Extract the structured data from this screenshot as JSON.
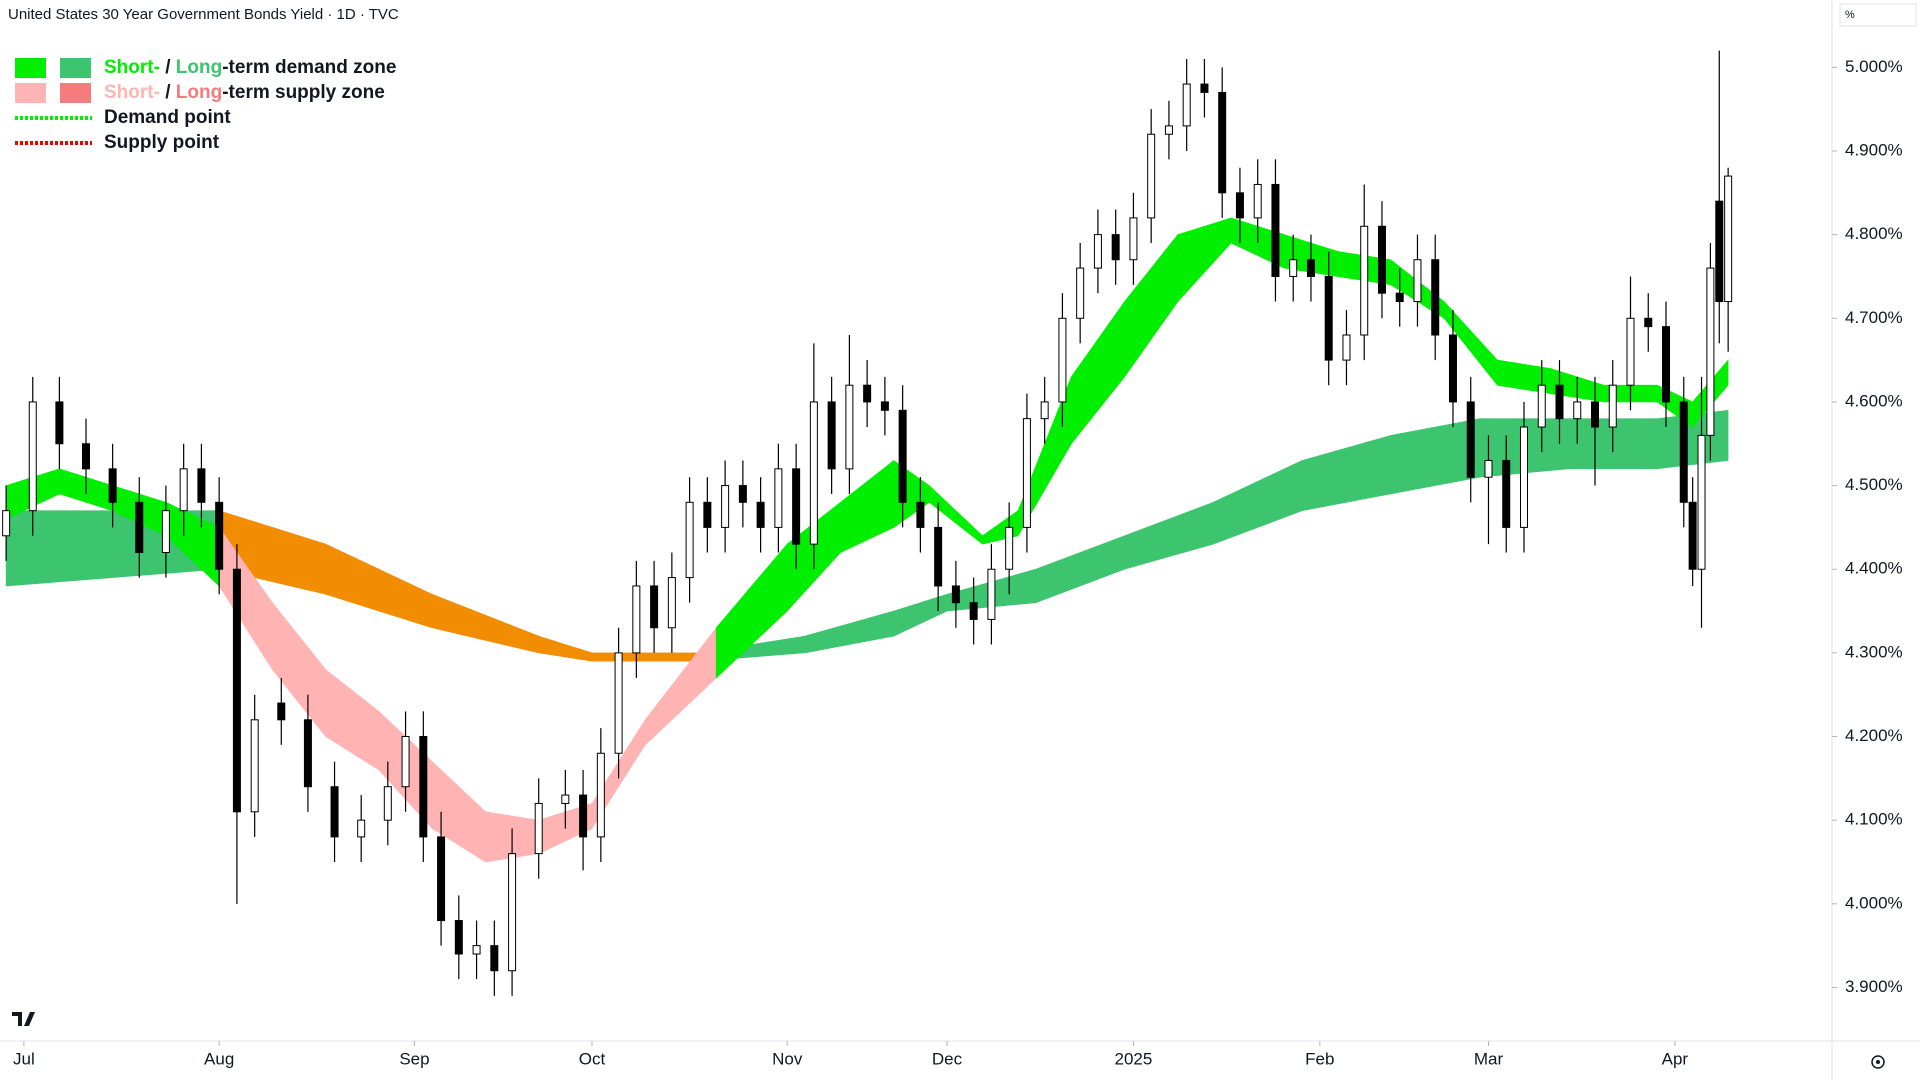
{
  "chart_data": {
    "type": "candlestick",
    "title": "United States 30 Year Government Bonds Yield · 1D · TVC",
    "y_unit": "%",
    "xlim": [
      -0.69,
      205.7
    ],
    "ylim": [
      3.836,
      5.0805
    ],
    "xticks": [
      {
        "value": 2,
        "label": "Jul"
      },
      {
        "value": 24,
        "label": "Aug"
      },
      {
        "value": 46,
        "label": "Sep"
      },
      {
        "value": 66,
        "label": "Oct"
      },
      {
        "value": 88,
        "label": "Nov"
      },
      {
        "value": 106,
        "label": "Dec"
      },
      {
        "value": 127,
        "label": "2025"
      },
      {
        "value": 148,
        "label": "Feb"
      },
      {
        "value": 167,
        "label": "Mar"
      },
      {
        "value": 188,
        "label": "Apr"
      }
    ],
    "yticks": [
      {
        "value": 5.0,
        "label": "5.000%"
      },
      {
        "value": 4.9,
        "label": "4.900%"
      },
      {
        "value": 4.8,
        "label": "4.800%"
      },
      {
        "value": 4.7,
        "label": "4.700%"
      },
      {
        "value": 4.6,
        "label": "4.600%"
      },
      {
        "value": 4.5,
        "label": "4.500%"
      },
      {
        "value": 4.4,
        "label": "4.400%"
      },
      {
        "value": 4.3,
        "label": "4.300%"
      },
      {
        "value": 4.2,
        "label": "4.200%"
      },
      {
        "value": 4.1,
        "label": "4.100%"
      },
      {
        "value": 4.0,
        "label": "4.000%"
      },
      {
        "value": 3.9,
        "label": "3.900%"
      }
    ],
    "up_color": "#ffffff",
    "down_color": "#000000",
    "candles": [
      [
        0,
        4.44,
        4.5,
        4.41,
        4.47
      ],
      [
        3,
        4.47,
        4.63,
        4.44,
        4.6
      ],
      [
        6,
        4.6,
        4.63,
        4.52,
        4.55
      ],
      [
        9,
        4.55,
        4.58,
        4.49,
        4.52
      ],
      [
        12,
        4.52,
        4.55,
        4.45,
        4.48
      ],
      [
        15,
        4.48,
        4.51,
        4.39,
        4.42
      ],
      [
        18,
        4.42,
        4.5,
        4.39,
        4.47
      ],
      [
        20,
        4.47,
        4.55,
        4.44,
        4.52
      ],
      [
        22,
        4.52,
        4.55,
        4.45,
        4.48
      ],
      [
        24,
        4.48,
        4.51,
        4.37,
        4.4
      ],
      [
        26,
        4.4,
        4.43,
        4.0,
        4.11
      ],
      [
        28,
        4.11,
        4.25,
        4.08,
        4.22
      ],
      [
        31,
        4.24,
        4.27,
        4.19,
        4.22
      ],
      [
        34,
        4.22,
        4.25,
        4.11,
        4.14
      ],
      [
        37,
        4.14,
        4.17,
        4.05,
        4.08
      ],
      [
        40,
        4.08,
        4.13,
        4.05,
        4.1
      ],
      [
        43,
        4.1,
        4.17,
        4.07,
        4.14
      ],
      [
        45,
        4.14,
        4.23,
        4.11,
        4.2
      ],
      [
        47,
        4.2,
        4.23,
        4.05,
        4.08
      ],
      [
        49,
        4.08,
        4.11,
        3.95,
        3.98
      ],
      [
        51,
        3.98,
        4.01,
        3.91,
        3.94
      ],
      [
        53,
        3.94,
        3.98,
        3.91,
        3.95
      ],
      [
        55,
        3.95,
        3.98,
        3.89,
        3.92
      ],
      [
        57,
        3.92,
        4.09,
        3.89,
        4.06
      ],
      [
        60,
        4.06,
        4.15,
        4.03,
        4.12
      ],
      [
        63,
        4.12,
        4.16,
        4.09,
        4.13
      ],
      [
        65,
        4.13,
        4.16,
        4.04,
        4.08
      ],
      [
        67,
        4.08,
        4.21,
        4.05,
        4.18
      ],
      [
        69,
        4.18,
        4.33,
        4.15,
        4.3
      ],
      [
        71,
        4.3,
        4.41,
        4.27,
        4.38
      ],
      [
        73,
        4.38,
        4.41,
        4.3,
        4.33
      ],
      [
        75,
        4.33,
        4.42,
        4.3,
        4.39
      ],
      [
        77,
        4.39,
        4.51,
        4.36,
        4.48
      ],
      [
        79,
        4.48,
        4.51,
        4.42,
        4.45
      ],
      [
        81,
        4.45,
        4.53,
        4.42,
        4.5
      ],
      [
        83,
        4.5,
        4.53,
        4.45,
        4.48
      ],
      [
        85,
        4.48,
        4.51,
        4.42,
        4.45
      ],
      [
        87,
        4.45,
        4.55,
        4.42,
        4.52
      ],
      [
        89,
        4.52,
        4.55,
        4.4,
        4.43
      ],
      [
        91,
        4.43,
        4.67,
        4.4,
        4.6
      ],
      [
        93,
        4.6,
        4.63,
        4.49,
        4.52
      ],
      [
        95,
        4.52,
        4.68,
        4.49,
        4.62
      ],
      [
        97,
        4.62,
        4.65,
        4.57,
        4.6
      ],
      [
        99,
        4.6,
        4.63,
        4.56,
        4.59
      ],
      [
        101,
        4.59,
        4.62,
        4.45,
        4.48
      ],
      [
        103,
        4.48,
        4.51,
        4.42,
        4.45
      ],
      [
        105,
        4.45,
        4.48,
        4.35,
        4.38
      ],
      [
        107,
        4.38,
        4.41,
        4.33,
        4.36
      ],
      [
        109,
        4.36,
        4.39,
        4.31,
        4.34
      ],
      [
        111,
        4.34,
        4.43,
        4.31,
        4.4
      ],
      [
        113,
        4.4,
        4.48,
        4.37,
        4.45
      ],
      [
        115,
        4.45,
        4.61,
        4.42,
        4.58
      ],
      [
        117,
        4.58,
        4.63,
        4.55,
        4.6
      ],
      [
        119,
        4.6,
        4.73,
        4.57,
        4.7
      ],
      [
        121,
        4.7,
        4.79,
        4.67,
        4.76
      ],
      [
        123,
        4.76,
        4.83,
        4.73,
        4.8
      ],
      [
        125,
        4.8,
        4.83,
        4.74,
        4.77
      ],
      [
        127,
        4.77,
        4.85,
        4.74,
        4.82
      ],
      [
        129,
        4.82,
        4.95,
        4.79,
        4.92
      ],
      [
        131,
        4.92,
        4.96,
        4.89,
        4.93
      ],
      [
        133,
        4.93,
        5.01,
        4.9,
        4.98
      ],
      [
        135,
        4.98,
        5.01,
        4.94,
        4.97
      ],
      [
        137,
        4.97,
        5.0,
        4.82,
        4.85
      ],
      [
        139,
        4.85,
        4.88,
        4.79,
        4.82
      ],
      [
        141,
        4.82,
        4.89,
        4.79,
        4.86
      ],
      [
        143,
        4.86,
        4.89,
        4.72,
        4.75
      ],
      [
        145,
        4.75,
        4.8,
        4.72,
        4.77
      ],
      [
        147,
        4.77,
        4.8,
        4.72,
        4.75
      ],
      [
        149,
        4.75,
        4.78,
        4.62,
        4.65
      ],
      [
        151,
        4.65,
        4.71,
        4.62,
        4.68
      ],
      [
        153,
        4.68,
        4.86,
        4.65,
        4.81
      ],
      [
        155,
        4.81,
        4.84,
        4.7,
        4.73
      ],
      [
        157,
        4.73,
        4.76,
        4.69,
        4.72
      ],
      [
        159,
        4.72,
        4.8,
        4.69,
        4.77
      ],
      [
        161,
        4.77,
        4.8,
        4.65,
        4.68
      ],
      [
        163,
        4.68,
        4.71,
        4.57,
        4.6
      ],
      [
        165,
        4.6,
        4.63,
        4.48,
        4.51
      ],
      [
        167,
        4.51,
        4.56,
        4.43,
        4.53
      ],
      [
        169,
        4.53,
        4.56,
        4.42,
        4.45
      ],
      [
        171,
        4.45,
        4.6,
        4.42,
        4.57
      ],
      [
        173,
        4.57,
        4.65,
        4.54,
        4.62
      ],
      [
        175,
        4.62,
        4.65,
        4.55,
        4.58
      ],
      [
        177,
        4.58,
        4.63,
        4.55,
        4.6
      ],
      [
        179,
        4.6,
        4.63,
        4.5,
        4.57
      ],
      [
        181,
        4.57,
        4.65,
        4.54,
        4.62
      ],
      [
        183,
        4.62,
        4.75,
        4.59,
        4.7
      ],
      [
        185,
        4.7,
        4.73,
        4.66,
        4.69
      ],
      [
        187,
        4.69,
        4.72,
        4.57,
        4.6
      ],
      [
        189,
        4.6,
        4.63,
        4.45,
        4.48
      ],
      [
        190,
        4.48,
        4.51,
        4.38,
        4.4
      ],
      [
        191,
        4.4,
        4.63,
        4.33,
        4.56
      ],
      [
        192,
        4.56,
        4.79,
        4.53,
        4.76
      ],
      [
        193,
        4.84,
        5.02,
        4.67,
        4.72
      ],
      [
        194,
        4.72,
        4.88,
        4.66,
        4.87
      ]
    ],
    "short_band": {
      "x": [
        0,
        6,
        12,
        18,
        24,
        30,
        36,
        42,
        48,
        54,
        60,
        66,
        72,
        80,
        88,
        94,
        100,
        104,
        110,
        114,
        120,
        126,
        132,
        138,
        144,
        150,
        156,
        162,
        168,
        174,
        180,
        186,
        190,
        194
      ],
      "upper": [
        4.5,
        4.52,
        4.5,
        4.48,
        4.45,
        4.36,
        4.28,
        4.23,
        4.17,
        4.11,
        4.1,
        4.12,
        4.22,
        4.33,
        4.43,
        4.48,
        4.53,
        4.5,
        4.44,
        4.47,
        4.63,
        4.72,
        4.8,
        4.82,
        4.8,
        4.78,
        4.77,
        4.72,
        4.65,
        4.64,
        4.62,
        4.62,
        4.6,
        4.65
      ],
      "lower": [
        4.46,
        4.49,
        4.47,
        4.44,
        4.38,
        4.28,
        4.2,
        4.16,
        4.09,
        4.05,
        4.06,
        4.09,
        4.19,
        4.27,
        4.35,
        4.42,
        4.45,
        4.48,
        4.43,
        4.44,
        4.55,
        4.63,
        4.72,
        4.79,
        4.76,
        4.75,
        4.74,
        4.7,
        4.62,
        4.61,
        4.6,
        4.6,
        4.57,
        4.62
      ]
    },
    "long_band": {
      "x": [
        0,
        12,
        24,
        36,
        48,
        60,
        66,
        78,
        90,
        100,
        106,
        116,
        126,
        136,
        146,
        156,
        166,
        176,
        186,
        194
      ],
      "upper": [
        4.47,
        4.47,
        4.47,
        4.43,
        4.37,
        4.32,
        4.3,
        4.3,
        4.32,
        4.35,
        4.37,
        4.4,
        4.44,
        4.48,
        4.53,
        4.56,
        4.58,
        4.58,
        4.58,
        4.59
      ],
      "lower": [
        4.38,
        4.39,
        4.4,
        4.37,
        4.33,
        4.3,
        4.29,
        4.29,
        4.3,
        4.32,
        4.35,
        4.36,
        4.4,
        4.43,
        4.47,
        4.49,
        4.51,
        4.52,
        4.52,
        4.53
      ]
    },
    "band_colors": {
      "short_demand": "#00ee00",
      "long_demand": "#3cc46e",
      "short_supply": "#ffb3b3",
      "long_supply": "#f28c00"
    },
    "legend": [
      {
        "swatches": [
          "#00ee00",
          "#3cc46e"
        ],
        "parts": [
          {
            "text": "Short-",
            "color": "#00ee00"
          },
          {
            "text": " / ",
            "color": "#131722"
          },
          {
            "text": "Long",
            "color": "#3cc46e"
          },
          {
            "text": "-term demand zone",
            "color": "#131722"
          }
        ]
      },
      {
        "swatches": [
          "#ffb3b3",
          "#f47c7c"
        ],
        "parts": [
          {
            "text": "Short-",
            "color": "#ffb3b3"
          },
          {
            "text": " / ",
            "color": "#131722"
          },
          {
            "text": "Long",
            "color": "#f47c7c"
          },
          {
            "text": "-term supply zone",
            "color": "#131722"
          }
        ]
      },
      {
        "dotted": "#00ee00",
        "parts": [
          {
            "text": "Demand point",
            "color": "#131722"
          }
        ]
      },
      {
        "dotted": "#ee0000",
        "parts": [
          {
            "text": "Supply point",
            "color": "#131722"
          }
        ]
      }
    ]
  }
}
